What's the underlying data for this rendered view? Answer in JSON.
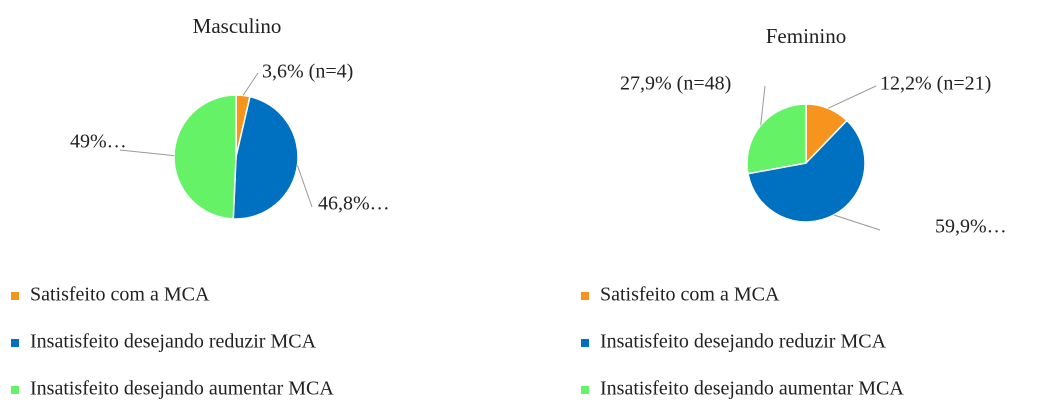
{
  "chart_data": [
    {
      "type": "pie",
      "title": "Masculino",
      "categories": [
        "Satisfeito com a MCA",
        "Insatisfeito desejando reduzir MCA",
        "Insatisfeito desejando aumentar MCA"
      ],
      "values": [
        3.6,
        46.8,
        49
      ],
      "value_labels": [
        "3,6% (n=4)",
        "46,8%…",
        "49%…"
      ],
      "colors": [
        "#f7941d",
        "#0070c0",
        "#66f266"
      ]
    },
    {
      "type": "pie",
      "title": "Feminino",
      "categories": [
        "Satisfeito com a MCA",
        "Insatisfeito desejando reduzir MCA",
        "Insatisfeito desejando aumentar MCA"
      ],
      "values": [
        12.2,
        59.9,
        27.9
      ],
      "value_labels": [
        "12,2% (n=21)",
        "59,9%…",
        "27,9% (n=48)"
      ],
      "colors": [
        "#f7941d",
        "#0070c0",
        "#66f266"
      ]
    }
  ]
}
